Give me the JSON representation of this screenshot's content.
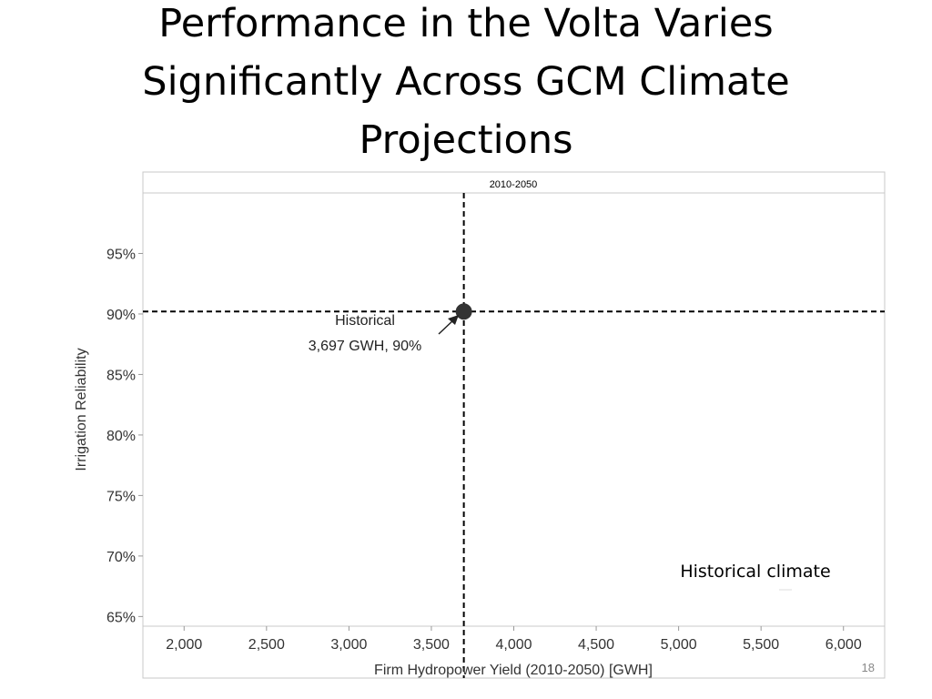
{
  "slide": {
    "title_lines": [
      "Performance in the Volta Varies",
      "Significantly Across GCM Climate",
      "Projections"
    ],
    "slide_number": "18"
  },
  "chart_data": {
    "type": "scatter",
    "panel_label": "2010-2050",
    "xlabel": "Firm Hydropower Yield (2010-2050) [GWH]",
    "ylabel": "Irrigation Reliability",
    "xlim": [
      1750,
      6250
    ],
    "ylim": [
      64.2,
      100
    ],
    "x_ticks": [
      2000,
      2500,
      3000,
      3500,
      4000,
      4500,
      5000,
      5500,
      6000
    ],
    "x_tick_labels": [
      "2,000",
      "2,500",
      "3,000",
      "3,500",
      "4,000",
      "4,500",
      "5,000",
      "5,500",
      "6,000"
    ],
    "y_ticks": [
      65,
      70,
      75,
      80,
      85,
      90,
      95
    ],
    "y_tick_labels": [
      "65%",
      "70%",
      "75%",
      "80%",
      "85%",
      "90%",
      "95%"
    ],
    "series": [
      {
        "name": "Historical climate",
        "points": [
          {
            "x": 3697,
            "y": 90.2
          }
        ],
        "color": "#333333"
      }
    ],
    "reference_lines": {
      "x": 3697,
      "y": 90.2,
      "style": "dashed"
    },
    "annotation": {
      "lines": [
        "Historical",
        "3,697 GWH, 90%"
      ]
    },
    "legend": {
      "position": "bottom-right",
      "entries": [
        "Historical climate"
      ]
    }
  }
}
